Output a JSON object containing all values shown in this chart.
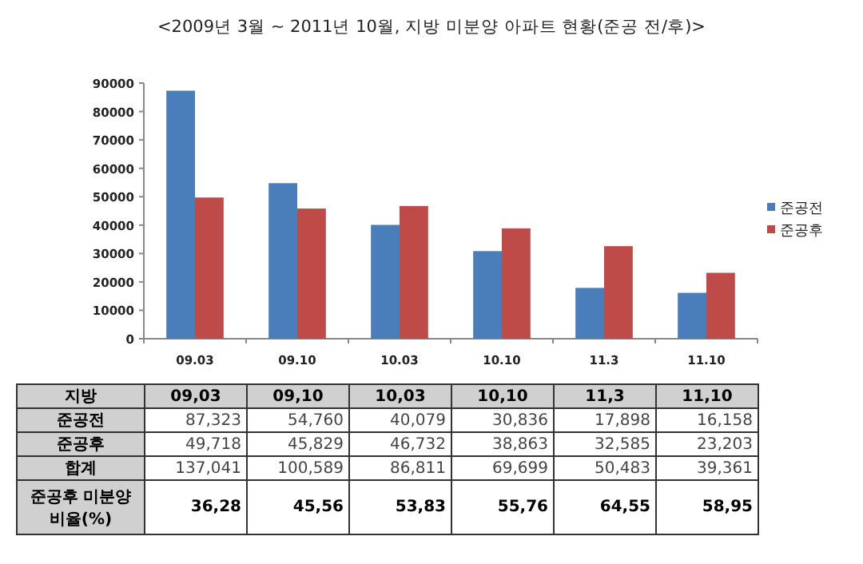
{
  "chart_data": {
    "type": "bar",
    "title": "<2009년 3월 ~ 2011년 10월, 지방 미분양 아파트 현황(준공 전/후)>",
    "categories": [
      "09.03",
      "09.10",
      "10.03",
      "10.10",
      "11.3",
      "11.10"
    ],
    "series": [
      {
        "name": "준공전",
        "color": "#4a7ebb",
        "values": [
          87323,
          54760,
          40079,
          30836,
          17898,
          16158
        ],
        "value_labels": [
          "87,323",
          "54,760",
          "40,079",
          "30,836",
          "17,898",
          "16,158"
        ]
      },
      {
        "name": "준공후",
        "color": "#be4b48",
        "values": [
          49718,
          45829,
          46732,
          38863,
          32585,
          23203
        ],
        "value_labels": [
          "49,718",
          "45,829",
          "46,732",
          "38,863",
          "32,585",
          "23,203"
        ]
      }
    ],
    "ylim": [
      0,
      90000
    ],
    "yticks": [
      0,
      10000,
      20000,
      30000,
      40000,
      50000,
      60000,
      70000,
      80000,
      90000
    ],
    "legend": "right",
    "grid": false,
    "annotations": [
      "지방",
      "09,03",
      "09,10",
      "10,03",
      "10,10",
      "11,3",
      "11,10",
      "합계",
      "137,041",
      "100,589",
      "86,811",
      "69,699",
      "50,483",
      "39,361",
      "준공후 미분양 비율(%)",
      "36,28",
      "45,56",
      "53,83",
      "55,76",
      "64,55",
      "58,95"
    ]
  }
}
